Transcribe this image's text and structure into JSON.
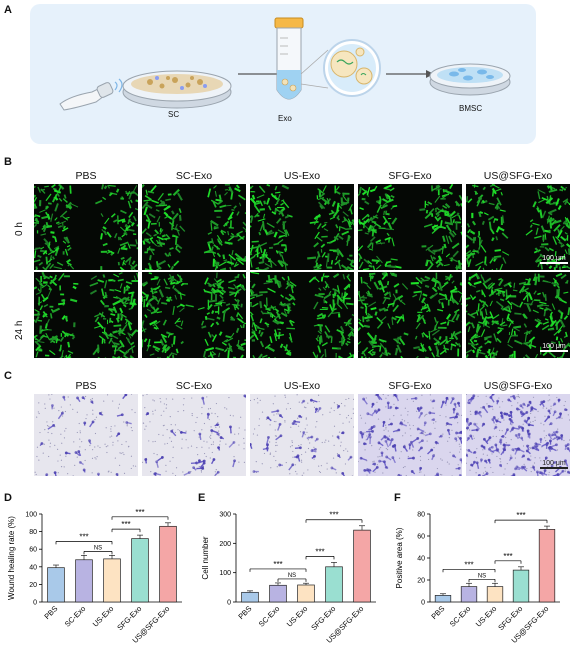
{
  "panel_labels": {
    "a": "A",
    "b": "B",
    "c": "C",
    "d": "D",
    "e": "E",
    "f": "F"
  },
  "schematic": {
    "sc_label": "SC",
    "exo_label": "Exo",
    "bmsc_label": "BMSC"
  },
  "groups": [
    "PBS",
    "SC-Exo",
    "US-Exo",
    "SFG-Exo",
    "US@SFG-Exo"
  ],
  "row_labels": {
    "t0": "0 h",
    "t24": "24 h"
  },
  "scale_bar": "100 μm",
  "colors": {
    "PBS": "#a9c9e9",
    "SC-Exo": "#b8b3e2",
    "US-Exo": "#fde3c2",
    "SFG-Exo": "#9adfd1",
    "US@SFG-Exo": "#f4a6a6",
    "wound_green": "#2fa63a",
    "stain_purple": "#5b4fc2",
    "schematic_bg": "#e6f1fb"
  },
  "chart_data": [
    {
      "type": "bar",
      "categories": [
        "PBS",
        "SC-Exo",
        "US-Exo",
        "SFG-Exo",
        "US@SFG-Exo"
      ],
      "values": [
        39,
        48,
        49,
        72,
        86
      ],
      "errors": [
        3,
        5,
        4,
        4,
        4
      ],
      "ylabel": "Wound healing rate (%)",
      "ylim": [
        0,
        100
      ],
      "yticks": [
        "0",
        "20",
        "40",
        "60",
        "80",
        "100"
      ],
      "significance": [
        {
          "from": "PBS",
          "to": "US-Exo",
          "label": "***"
        },
        {
          "from": "SC-Exo",
          "to": "US-Exo",
          "label": "NS"
        },
        {
          "from": "US-Exo",
          "to": "SFG-Exo",
          "label": "***"
        },
        {
          "from": "US-Exo",
          "to": "US@SFG-Exo",
          "label": "***"
        }
      ]
    },
    {
      "type": "bar",
      "categories": [
        "PBS",
        "SC-Exo",
        "US-Exo",
        "SFG-Exo",
        "US@SFG-Exo"
      ],
      "values": [
        33,
        57,
        58,
        120,
        245
      ],
      "errors": [
        5,
        8,
        6,
        15,
        15
      ],
      "ylabel": "Cell number",
      "ylim": [
        0,
        300
      ],
      "yticks": [
        "0",
        "100",
        "200",
        "300"
      ],
      "significance": [
        {
          "from": "PBS",
          "to": "US-Exo",
          "label": "***"
        },
        {
          "from": "SC-Exo",
          "to": "US-Exo",
          "label": "NS"
        },
        {
          "from": "US-Exo",
          "to": "SFG-Exo",
          "label": "***"
        },
        {
          "from": "US-Exo",
          "to": "US@SFG-Exo",
          "label": "***"
        }
      ]
    },
    {
      "type": "bar",
      "categories": [
        "PBS",
        "SC-Exo",
        "US-Exo",
        "SFG-Exo",
        "US@SFG-Exo"
      ],
      "values": [
        6,
        14,
        14,
        29,
        66
      ],
      "errors": [
        1.5,
        3,
        3,
        3,
        3
      ],
      "ylabel": "Positive area (%)",
      "ylim": [
        0,
        80
      ],
      "yticks": [
        "0",
        "20",
        "40",
        "60",
        "80"
      ],
      "significance": [
        {
          "from": "PBS",
          "to": "US-Exo",
          "label": "***"
        },
        {
          "from": "SC-Exo",
          "to": "US-Exo",
          "label": "NS"
        },
        {
          "from": "US-Exo",
          "to": "SFG-Exo",
          "label": "***"
        },
        {
          "from": "US-Exo",
          "to": "US@SFG-Exo",
          "label": "***"
        }
      ]
    }
  ]
}
